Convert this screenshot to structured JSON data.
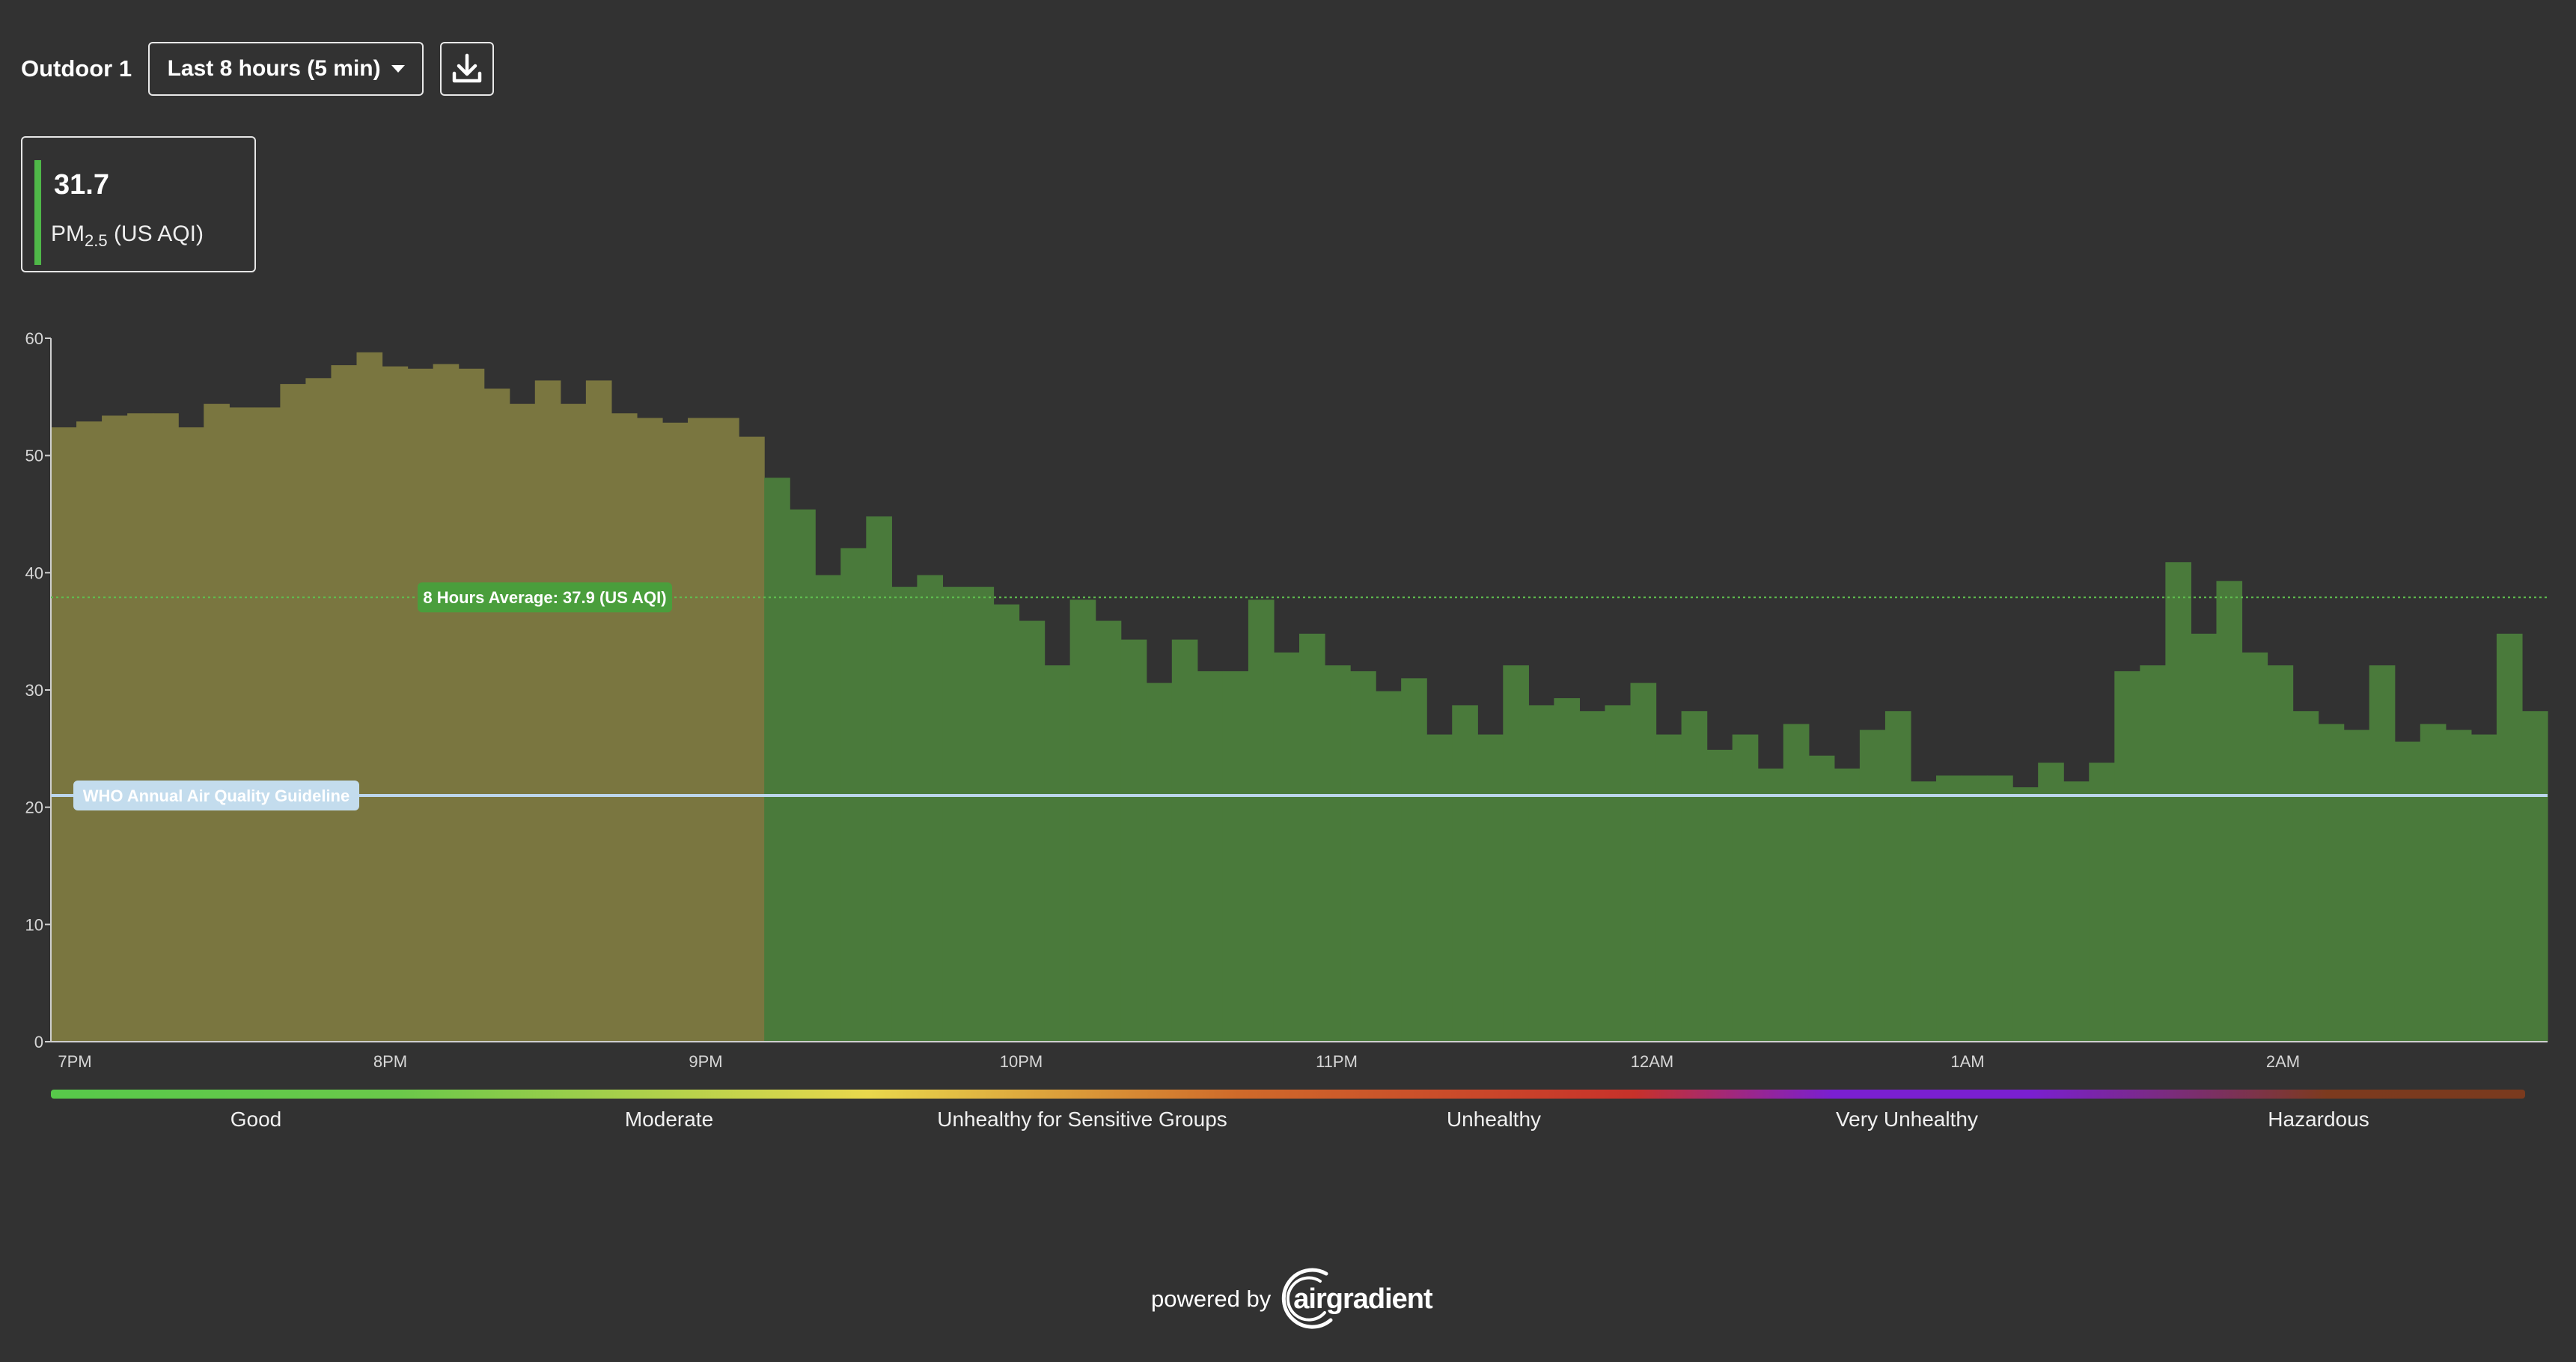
{
  "header": {
    "location": "Outdoor 1",
    "range_label": "Last 8 hours (5 min)",
    "download_icon": "download-icon"
  },
  "card": {
    "value": "31.7",
    "label_main": "PM",
    "label_sub": "2.5",
    "label_suffix": "(US AQI)",
    "accent_color": "#4fb848"
  },
  "chart_data": {
    "type": "bar",
    "ylim": [
      0,
      60
    ],
    "yticks": [
      "0",
      "10",
      "20",
      "30",
      "40",
      "50",
      "60"
    ],
    "xticks": [
      "7PM",
      "8PM",
      "9PM",
      "10PM",
      "11PM",
      "12AM",
      "1AM",
      "2AM"
    ],
    "values": [
      52.4,
      52.9,
      53.4,
      53.6,
      53.6,
      52.4,
      54.4,
      54.1,
      54.1,
      56.1,
      56.6,
      57.7,
      58.8,
      57.6,
      57.4,
      57.8,
      57.4,
      55.7,
      54.4,
      56.4,
      54.4,
      56.4,
      53.6,
      53.2,
      52.8,
      53.2,
      53.2,
      51.6,
      48.1,
      45.4,
      39.8,
      42.1,
      44.8,
      38.8,
      39.8,
      38.8,
      38.8,
      37.3,
      35.9,
      32.1,
      37.7,
      35.9,
      34.3,
      30.6,
      34.3,
      31.6,
      31.6,
      37.7,
      33.2,
      34.8,
      32.1,
      31.6,
      29.9,
      31.0,
      26.2,
      28.7,
      26.2,
      32.1,
      28.7,
      29.3,
      28.2,
      28.7,
      30.6,
      26.2,
      28.2,
      24.9,
      26.2,
      23.3,
      27.1,
      24.4,
      23.3,
      26.6,
      28.2,
      22.2,
      22.7,
      22.7,
      22.7,
      21.7,
      23.8,
      22.2,
      23.8,
      31.6,
      32.1,
      40.9,
      34.8,
      39.3,
      33.2,
      32.1,
      28.2,
      27.1,
      26.6,
      32.1,
      25.6,
      27.1,
      26.6,
      26.2,
      34.8,
      28.2
    ],
    "colors": {
      "moderate": "#7a7640",
      "good": "#4a7a3b"
    },
    "average_label": "8 Hours Average: 37.9 (US AQI)",
    "average_value": 37.9,
    "who_label": "WHO Annual Air Quality Guideline",
    "who_value": 21
  },
  "legend": [
    "Good",
    "Moderate",
    "Unhealthy for Sensitive Groups",
    "Unhealthy",
    "Very Unhealthy",
    "Hazardous"
  ],
  "footer": {
    "powered_by": "powered by",
    "logo_text": "airgradient",
    "logo_icon": "airgradient-logo-icon"
  }
}
